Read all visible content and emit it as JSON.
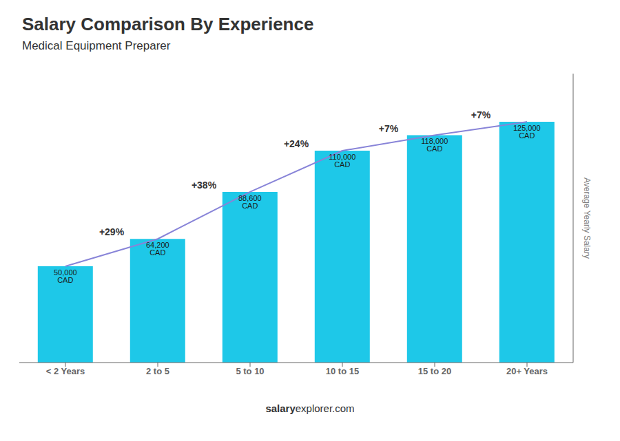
{
  "chart_data": {
    "type": "bar",
    "title": "Salary Comparison By Experience",
    "subtitle": "Medical Equipment Preparer",
    "categories": [
      "< 2 Years",
      "2 to 5",
      "5 to 10",
      "10 to 15",
      "15 to 20",
      "20+ Years"
    ],
    "values": [
      50000,
      64200,
      88600,
      110000,
      118000,
      125000
    ],
    "value_labels": [
      "50,000 CAD",
      "64,200 CAD",
      "88,600 CAD",
      "110,000 CAD",
      "118,000 CAD",
      "125,000 CAD"
    ],
    "data_labels": true,
    "color": "#1ec8e8",
    "ylabel": "Average Yearly Salary",
    "ylim": [
      0,
      150000
    ],
    "yticks": [],
    "tick_labels": "x",
    "grid": false,
    "annotations": [
      {
        "text": "+29%",
        "from": "< 2 Years",
        "to": "2 to 5"
      },
      {
        "text": "+38%",
        "from": "2 to 5",
        "to": "5 to 10"
      },
      {
        "text": "+24%",
        "from": "5 to 10",
        "to": "10 to 15"
      },
      {
        "text": "+7%",
        "from": "10 to 15",
        "to": "15 to 20"
      },
      {
        "text": "+7%",
        "from": "15 to 20",
        "to": "20+ Years"
      }
    ],
    "footer": [
      "salary",
      "explorer.com"
    ]
  }
}
